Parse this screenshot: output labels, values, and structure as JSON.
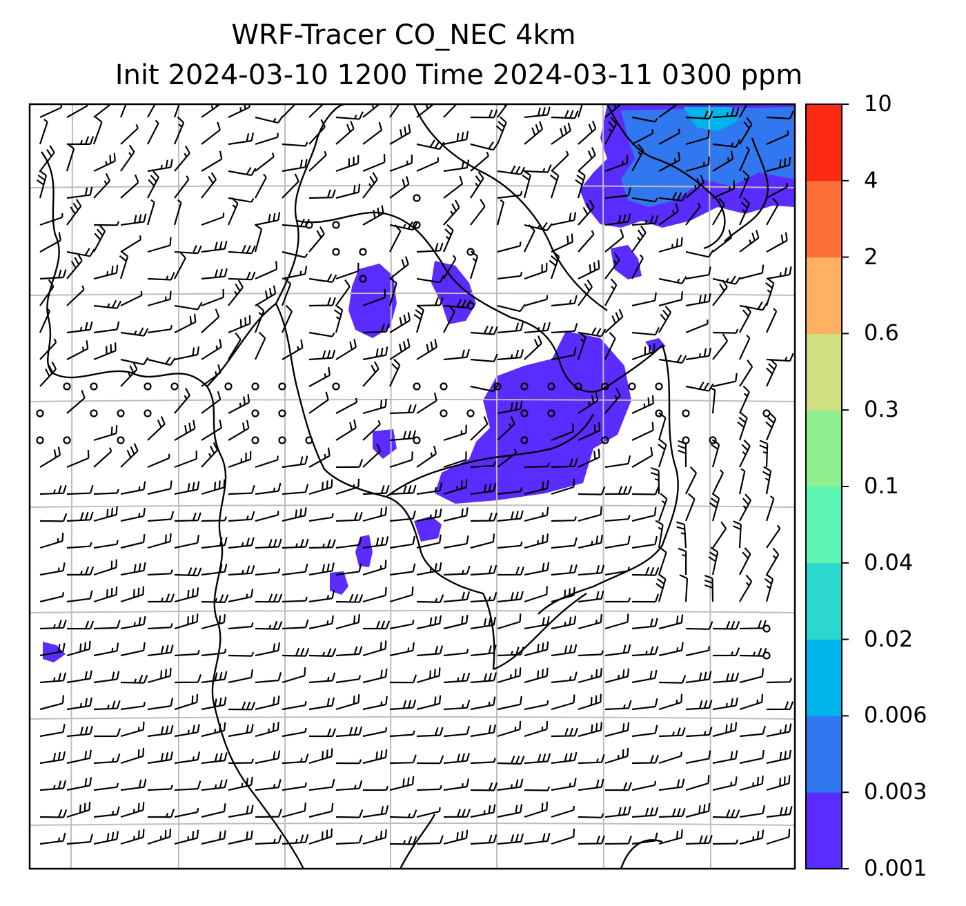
{
  "title": {
    "line1": "WRF-Tracer CO_NEC 4km",
    "line2": "Init 2024-03-10 1200 Time 2024-03-11 0300 ppm"
  },
  "colorbar": {
    "levels": [
      "0.001",
      "0.003",
      "0.006",
      "0.02",
      "0.04",
      "0.1",
      "0.3",
      "0.6",
      "2",
      "4",
      "10"
    ],
    "colors": [
      "#5b2cff",
      "#3178f0",
      "#00b4ec",
      "#2ad8d0",
      "#5cf5b4",
      "#8ef08e",
      "#d0e080",
      "#ffb060",
      "#ff7038",
      "#ff2a14"
    ]
  },
  "colors": {
    "tracer_low": "#5b2cff",
    "tracer_mid": "#3178f0",
    "tracer_high": "#00b4ec",
    "coastline": "#000000",
    "grid": "#bdbdbd"
  }
}
